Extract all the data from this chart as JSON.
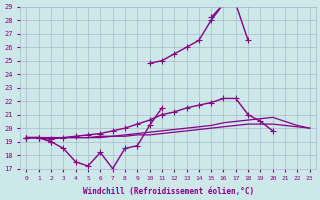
{
  "xlabel": "Windchill (Refroidissement éolien,°C)",
  "background_color": "#cce8e8",
  "grid_color": "#aabbcc",
  "line_color": "#880088",
  "x_hours": [
    0,
    1,
    2,
    3,
    4,
    5,
    6,
    7,
    8,
    9,
    10,
    11,
    12,
    13,
    14,
    15,
    16,
    17,
    18,
    19,
    20,
    21,
    22,
    23
  ],
  "series_jagged": [
    19.3,
    19.3,
    19.0,
    18.5,
    17.5,
    17.2,
    18.2,
    17.0,
    18.5,
    18.7,
    20.2,
    21.5,
    null,
    null,
    null,
    null,
    null,
    null,
    null,
    null,
    null,
    null,
    null,
    null
  ],
  "series_upper": [
    19.3,
    19.3,
    19.0,
    null,
    null,
    null,
    null,
    null,
    null,
    null,
    24.8,
    25.0,
    25.5,
    26.0,
    26.5,
    28.0,
    29.2,
    29.2,
    26.5,
    null,
    null,
    null,
    null,
    null
  ],
  "series_peak": [
    null,
    null,
    null,
    null,
    null,
    null,
    null,
    null,
    null,
    null,
    null,
    null,
    null,
    null,
    null,
    28.2,
    29.2,
    29.2,
    29.2,
    null,
    null,
    null,
    null,
    null
  ],
  "series_mid": [
    19.3,
    19.3,
    19.2,
    19.3,
    19.4,
    19.5,
    19.6,
    19.8,
    20.0,
    20.3,
    20.6,
    21.0,
    21.2,
    21.5,
    21.7,
    21.9,
    22.2,
    22.2,
    21.0,
    20.5,
    19.8,
    null,
    null,
    null
  ],
  "series_low": [
    19.3,
    19.3,
    19.3,
    19.3,
    19.3,
    19.3,
    19.4,
    19.4,
    19.5,
    19.6,
    19.7,
    19.8,
    19.9,
    20.0,
    20.1,
    20.2,
    20.4,
    20.5,
    20.6,
    20.7,
    20.8,
    20.5,
    20.2,
    20.0
  ],
  "series_low2": [
    19.3,
    19.3,
    19.3,
    19.3,
    19.3,
    19.3,
    19.3,
    19.4,
    19.4,
    19.5,
    19.5,
    19.6,
    19.7,
    19.8,
    19.9,
    20.0,
    20.1,
    20.2,
    20.3,
    20.3,
    20.3,
    20.2,
    20.1,
    20.0
  ],
  "ylim": [
    17,
    29
  ],
  "yticks": [
    17,
    18,
    19,
    20,
    21,
    22,
    23,
    24,
    25,
    26,
    27,
    28,
    29
  ],
  "xlim": [
    -0.5,
    23.5
  ]
}
